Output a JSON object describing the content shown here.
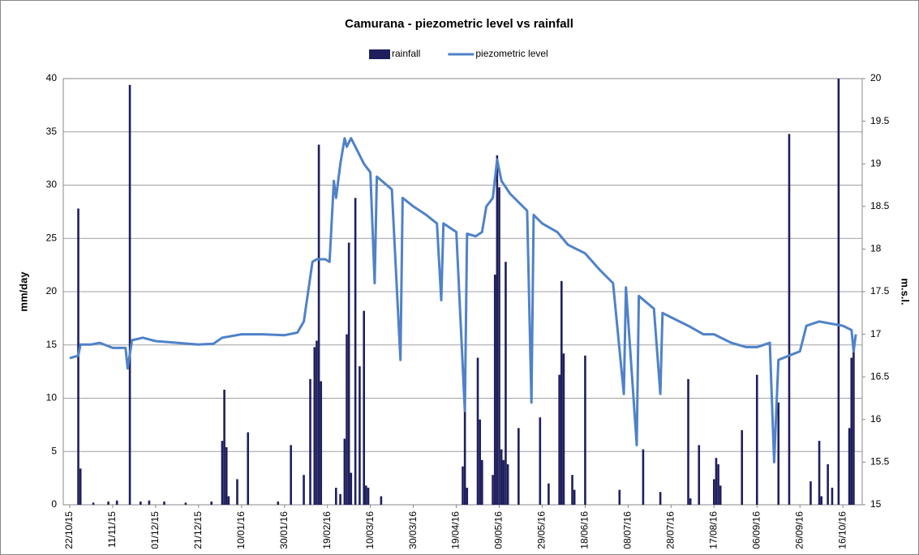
{
  "chart_data": {
    "type": "combo",
    "title": "Camurana - piezometric level vs rainfall",
    "y_label": "mm/day",
    "y2_label": "m.s.l.",
    "legend": "top",
    "grid": true,
    "xlim": [
      "19/10/15",
      "25/10/16"
    ],
    "xticks": [
      "22/10/15",
      "11/11/15",
      "01/12/15",
      "21/12/15",
      "10/01/16",
      "30/01/16",
      "19/02/16",
      "10/03/16",
      "30/03/16",
      "19/04/16",
      "09/05/16",
      "29/05/16",
      "18/06/16",
      "08/07/16",
      "28/07/16",
      "17/08/16",
      "06/09/16",
      "26/09/16",
      "16/10/16"
    ],
    "ylim": [
      0,
      40
    ],
    "yticks": [
      0,
      5,
      10,
      15,
      20,
      25,
      30,
      35,
      40
    ],
    "y2lim": [
      15,
      20
    ],
    "y2ticks": [
      15,
      15.5,
      16,
      16.5,
      17,
      17.5,
      18,
      18.5,
      19,
      19.5,
      20
    ],
    "series": [
      {
        "name": "rainfall",
        "type": "bar",
        "color": "#1f1f5e",
        "x": [
          "26/10/15",
          "27/10/15",
          "02/11/15",
          "09/11/15",
          "13/11/15",
          "19/11/15",
          "24/11/15",
          "28/11/15",
          "05/12/15",
          "15/12/15",
          "27/12/15",
          "01/01/16",
          "02/01/16",
          "03/01/16",
          "04/01/16",
          "08/01/16",
          "13/01/16",
          "27/01/16",
          "02/02/16",
          "08/02/16",
          "11/02/16",
          "13/02/16",
          "14/02/16",
          "15/02/16",
          "16/02/16",
          "23/02/16",
          "25/02/16",
          "27/02/16",
          "28/02/16",
          "29/02/16",
          "01/03/16",
          "03/03/16",
          "05/03/16",
          "07/03/16",
          "08/03/16",
          "09/03/16",
          "15/03/16",
          "22/04/16",
          "23/04/16",
          "24/04/16",
          "29/04/16",
          "30/04/16",
          "01/05/16",
          "06/05/16",
          "07/05/16",
          "08/05/16",
          "09/05/16",
          "10/05/16",
          "11/05/16",
          "12/05/16",
          "13/05/16",
          "18/05/16",
          "28/05/16",
          "01/06/16",
          "06/06/16",
          "07/06/16",
          "08/06/16",
          "12/06/16",
          "13/06/16",
          "18/06/16",
          "04/07/16",
          "15/07/16",
          "23/07/16",
          "05/08/16",
          "06/08/16",
          "10/08/16",
          "17/08/16",
          "18/08/16",
          "19/08/16",
          "20/08/16",
          "30/08/16",
          "06/09/16",
          "16/09/16",
          "21/09/16",
          "01/10/16",
          "05/10/16",
          "06/10/16",
          "09/10/16",
          "11/10/16",
          "14/10/16",
          "19/10/16",
          "20/10/16",
          "21/10/16"
        ],
        "values": [
          27.8,
          3.4,
          0.2,
          0.3,
          0.4,
          39.4,
          0.3,
          0.4,
          0.3,
          0.2,
          0.3,
          6.0,
          10.8,
          5.4,
          0.8,
          2.4,
          6.8,
          0.3,
          5.6,
          2.8,
          11.8,
          14.8,
          15.4,
          33.8,
          11.6,
          1.6,
          1.0,
          6.2,
          16.0,
          24.6,
          3.0,
          28.8,
          13.0,
          18.2,
          1.8,
          1.6,
          0.8,
          3.6,
          9.8,
          1.6,
          13.8,
          8.0,
          4.2,
          2.8,
          21.6,
          32.8,
          29.8,
          5.2,
          4.2,
          22.8,
          3.8,
          7.2,
          8.2,
          2.0,
          12.2,
          21.0,
          14.2,
          2.8,
          1.4,
          14.0,
          1.4,
          5.2,
          1.2,
          11.8,
          0.6,
          5.6,
          2.4,
          4.4,
          3.8,
          1.8,
          7.0,
          12.2,
          9.6,
          34.8,
          2.2,
          6.0,
          0.8,
          3.8,
          1.6,
          40.0,
          7.2,
          13.8,
          14.4
        ]
      },
      {
        "name": "piezometric level",
        "type": "line",
        "axis": "y2",
        "color": "#4f82c8",
        "x": [
          "22/10/15",
          "26/10/15",
          "27/10/15",
          "01/11/15",
          "05/11/15",
          "11/11/15",
          "17/11/15",
          "18/11/15",
          "20/11/15",
          "25/11/15",
          "01/12/15",
          "11/12/15",
          "21/12/15",
          "28/12/15",
          "01/01/16",
          "10/01/16",
          "20/01/16",
          "30/01/16",
          "05/02/16",
          "08/02/16",
          "10/02/16",
          "12/02/16",
          "14/02/16",
          "18/02/16",
          "20/02/16",
          "22/02/16",
          "23/02/16",
          "25/02/16",
          "27/02/16",
          "28/02/16",
          "01/03/16",
          "04/03/16",
          "07/03/16",
          "10/03/16",
          "12/03/16",
          "13/03/16",
          "20/03/16",
          "24/03/16",
          "25/03/16",
          "30/03/16",
          "05/04/16",
          "10/04/16",
          "12/04/16",
          "13/04/16",
          "19/04/16",
          "23/04/16",
          "24/04/16",
          "28/04/16",
          "01/05/16",
          "03/05/16",
          "06/05/16",
          "08/05/16",
          "10/05/16",
          "14/05/16",
          "18/05/16",
          "22/05/16",
          "24/05/16",
          "25/05/16",
          "29/05/16",
          "05/06/16",
          "10/06/16",
          "18/06/16",
          "25/06/16",
          "01/07/16",
          "06/07/16",
          "07/07/16",
          "12/07/16",
          "13/07/16",
          "20/07/16",
          "23/07/16",
          "24/07/16",
          "28/07/16",
          "05/08/16",
          "12/08/16",
          "17/08/16",
          "25/08/16",
          "01/09/16",
          "06/09/16",
          "12/09/16",
          "14/09/16",
          "16/09/16",
          "26/09/16",
          "29/09/16",
          "05/10/16",
          "16/10/16",
          "20/10/16",
          "21/10/16",
          "22/10/16"
        ],
        "values": [
          16.72,
          16.75,
          16.88,
          16.88,
          16.9,
          16.84,
          16.84,
          16.6,
          16.93,
          16.96,
          16.92,
          16.9,
          16.88,
          16.89,
          16.96,
          17.0,
          17.0,
          16.99,
          17.02,
          17.15,
          17.5,
          17.85,
          17.88,
          17.88,
          17.85,
          18.8,
          18.6,
          19.0,
          19.3,
          19.2,
          19.3,
          19.15,
          19.0,
          18.9,
          17.6,
          18.85,
          18.7,
          16.7,
          18.6,
          18.5,
          18.4,
          18.3,
          17.4,
          18.3,
          18.2,
          16.1,
          18.18,
          18.15,
          18.2,
          18.5,
          18.6,
          19.05,
          18.8,
          18.65,
          18.55,
          18.45,
          16.2,
          18.4,
          18.3,
          18.2,
          18.05,
          17.95,
          17.75,
          17.6,
          16.3,
          17.55,
          15.7,
          17.45,
          17.3,
          16.3,
          17.25,
          17.2,
          17.1,
          17.0,
          17.0,
          16.9,
          16.85,
          16.85,
          16.9,
          15.5,
          16.7,
          16.8,
          17.1,
          17.15,
          17.1,
          17.05,
          16.8,
          17.0
        ]
      }
    ]
  }
}
